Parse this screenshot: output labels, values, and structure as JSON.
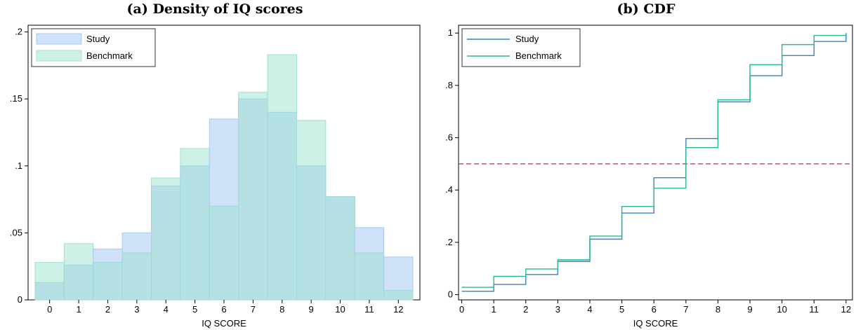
{
  "colors": {
    "study_fill": "#cfe2f9",
    "study_edge": "#a9c8f0",
    "bench_fill": "#cdf1e6",
    "bench_edge": "#a2e2cc",
    "overlap_fill": "#b6e1e4",
    "study_line": "#3a7fd0",
    "bench_line": "#26b98a",
    "ref_line": "#d6244c"
  },
  "chart_data": [
    {
      "type": "bar",
      "title": "(a) Density of IQ scores",
      "xlabel": "IQ SCORE",
      "ylabel": "",
      "categories": [
        "0",
        "1",
        "2",
        "3",
        "4",
        "5",
        "6",
        "7",
        "8",
        "9",
        "10",
        "11",
        "12"
      ],
      "ylim": [
        0,
        0.205
      ],
      "yticks": [
        0,
        0.05,
        0.1,
        0.15,
        0.2
      ],
      "ytick_labels": [
        "0",
        ".05",
        ".1",
        ".15",
        ".2"
      ],
      "grid": false,
      "legend_position": "top-left",
      "series": [
        {
          "name": "Study",
          "values": [
            0.013,
            0.026,
            0.038,
            0.05,
            0.085,
            0.1,
            0.135,
            0.15,
            0.14,
            0.1,
            0.077,
            0.054,
            0.032
          ]
        },
        {
          "name": "Benchmark",
          "values": [
            0.028,
            0.042,
            0.028,
            0.035,
            0.091,
            0.113,
            0.07,
            0.155,
            0.183,
            0.134,
            0.077,
            0.035,
            0.007
          ]
        }
      ]
    },
    {
      "type": "line",
      "title": "(b) CDF",
      "xlabel": "IQ SCORE",
      "ylabel": "",
      "step": true,
      "x": [
        0,
        1,
        2,
        3,
        4,
        5,
        6,
        7,
        8,
        9,
        10,
        11,
        12
      ],
      "xlim": [
        -0.1,
        12.2
      ],
      "ylim": [
        -0.02,
        1.03
      ],
      "yticks": [
        0,
        0.2,
        0.4,
        0.6,
        0.8,
        1
      ],
      "ytick_labels": [
        "0",
        ".2",
        ".4",
        ".6",
        ".8",
        "1"
      ],
      "reference_line": 0.5,
      "grid": false,
      "legend_position": "top-left",
      "series": [
        {
          "name": "Study",
          "values": [
            0.013,
            0.039,
            0.077,
            0.127,
            0.212,
            0.312,
            0.447,
            0.597,
            0.737,
            0.837,
            0.914,
            0.968,
            1.0
          ]
        },
        {
          "name": "Benchmark",
          "values": [
            0.028,
            0.07,
            0.098,
            0.133,
            0.224,
            0.337,
            0.407,
            0.562,
            0.745,
            0.879,
            0.956,
            0.991,
            0.998
          ]
        }
      ]
    }
  ]
}
